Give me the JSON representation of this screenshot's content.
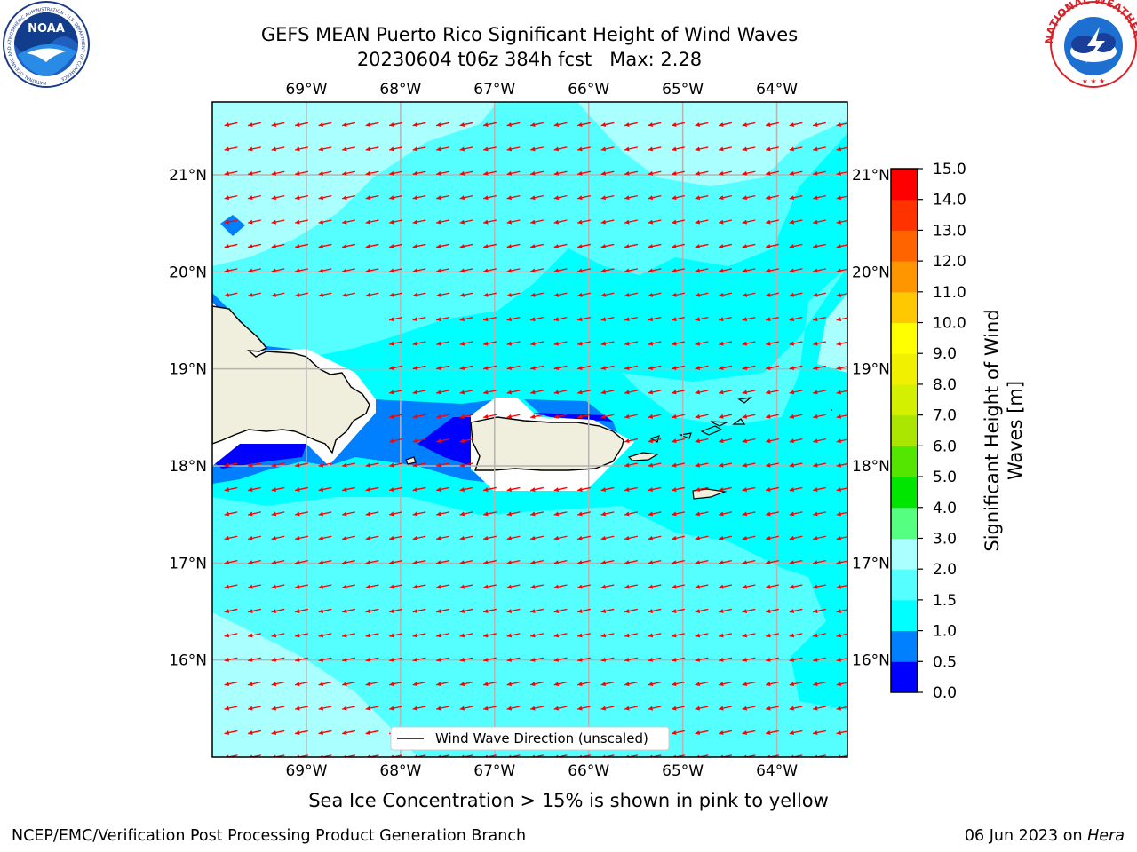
{
  "header": {
    "title_line1": "GEFS MEAN Puerto Rico Significant Height of Wind Waves",
    "title_line2": "20230604 t06z 384h fcst   Max: 2.28"
  },
  "logos": {
    "left": {
      "name": "noaa-logo",
      "text": "NOAA",
      "ring_text": "NATIONAL OCEANIC AND ATMOSPHERIC ADMINISTRATION · U.S. DEPARTMENT OF COMMERCE"
    },
    "right": {
      "name": "nws-logo",
      "ring_text": "NATIONAL WEATHER SERVICE"
    }
  },
  "map": {
    "lon_range": [
      -70,
      -63.25
    ],
    "lat_range": [
      15,
      21.75
    ],
    "lon_ticks": [
      {
        "value": -69,
        "label": "69°W"
      },
      {
        "value": -68,
        "label": "68°W"
      },
      {
        "value": -67,
        "label": "67°W"
      },
      {
        "value": -66,
        "label": "66°W"
      },
      {
        "value": -65,
        "label": "65°W"
      },
      {
        "value": -64,
        "label": "64°W"
      }
    ],
    "lat_ticks": [
      {
        "value": 21,
        "label": "21°N"
      },
      {
        "value": 20,
        "label": "20°N"
      },
      {
        "value": 19,
        "label": "19°N"
      },
      {
        "value": 18,
        "label": "18°N"
      },
      {
        "value": 17,
        "label": "17°N"
      },
      {
        "value": 16,
        "label": "16°N"
      }
    ],
    "colors": {
      "sea_base": "#00ffff",
      "land": "#f0eedc",
      "grid": "#b4b4b4",
      "arrow": "#ff0000"
    },
    "legend_text": "Wind Wave Direction (unscaled)"
  },
  "colorbar": {
    "label": "Significant Height of Wind Waves [m]",
    "label_line1": "Significant Height of Wind",
    "label_line2": "Waves [m]",
    "levels": [
      "0.0",
      "0.5",
      "1.0",
      "1.5",
      "2.0",
      "3.0",
      "4.0",
      "5.0",
      "6.0",
      "7.0",
      "8.0",
      "9.0",
      "10.0",
      "11.0",
      "12.0",
      "13.0",
      "14.0",
      "15.0"
    ],
    "colors": [
      "#0000ff",
      "#0080ff",
      "#00ffff",
      "#55ffff",
      "#aaffff",
      "#55ff80",
      "#00e600",
      "#55e600",
      "#aae600",
      "#d2f000",
      "#f0f000",
      "#ffff00",
      "#ffc800",
      "#ff9600",
      "#ff6400",
      "#ff3200",
      "#ff0000"
    ]
  },
  "footer": {
    "subtitle": "Sea Ice Concentration > 15% is shown in pink to yellow",
    "left": "NCEP/EMC/Verification Post Processing Product Generation Branch",
    "right_date": "06 Jun 2023 on",
    "right_host": "Hera"
  }
}
